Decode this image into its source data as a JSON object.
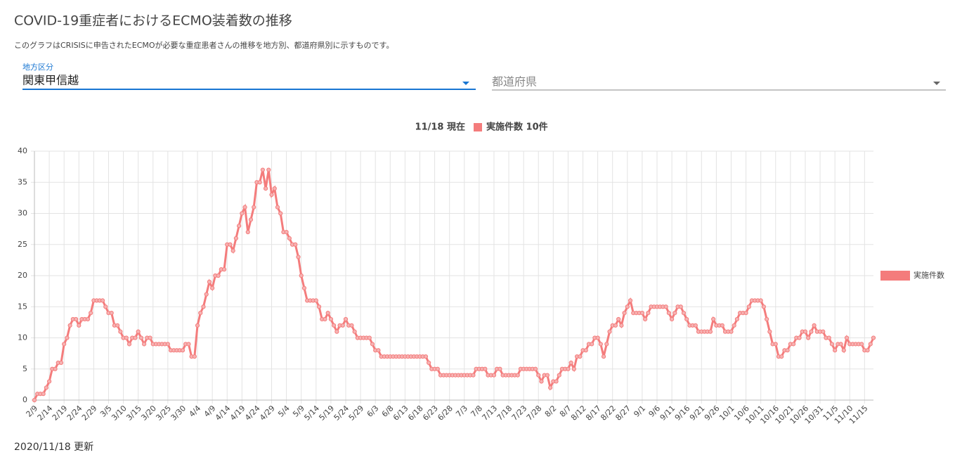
{
  "header": {
    "title": "COVID-19重症者におけるECMO装着数の推移",
    "subtitle": "このグラフはCRISISに申告されたECMOが必要な重症患者さんの推移を地方別、都道府県別に示すものです。"
  },
  "filters": {
    "region_label": "地方区分",
    "region_value": "関東甲信越",
    "prefecture_placeholder": "都道府県"
  },
  "footer": {
    "updated": "2020/11/18 更新"
  },
  "chart_data": {
    "type": "line",
    "title": "11/18 現在",
    "summary": "実施件数 10件",
    "legend": "right",
    "grid": true,
    "ylim": [
      0,
      40
    ],
    "yticks": [
      0,
      5,
      10,
      15,
      20,
      25,
      30,
      35,
      40
    ],
    "categories": [
      "2/9",
      null,
      null,
      null,
      null,
      "2/14",
      null,
      null,
      null,
      null,
      "2/19",
      null,
      null,
      null,
      null,
      "2/24",
      null,
      null,
      null,
      null,
      "2/29",
      null,
      null,
      null,
      null,
      "3/5",
      null,
      null,
      null,
      null,
      "3/10",
      null,
      null,
      null,
      null,
      "3/15",
      null,
      null,
      null,
      null,
      "3/20",
      null,
      null,
      null,
      null,
      "3/25",
      null,
      null,
      null,
      null,
      "3/30",
      null,
      null,
      null,
      null,
      "4/4",
      null,
      null,
      null,
      null,
      "4/9",
      null,
      null,
      null,
      null,
      "4/14",
      null,
      null,
      null,
      null,
      "4/19",
      null,
      null,
      null,
      null,
      "4/24",
      null,
      null,
      null,
      null,
      "4/29",
      null,
      null,
      null,
      null,
      "5/4",
      null,
      null,
      null,
      null,
      "5/9",
      null,
      null,
      null,
      null,
      "5/14",
      null,
      null,
      null,
      null,
      "5/19",
      null,
      null,
      null,
      null,
      "5/24",
      null,
      null,
      null,
      null,
      "5/29",
      null,
      null,
      null,
      null,
      "6/3",
      null,
      null,
      null,
      null,
      "6/8",
      null,
      null,
      null,
      null,
      "6/13",
      null,
      null,
      null,
      null,
      "6/18",
      null,
      null,
      null,
      null,
      "6/23",
      null,
      null,
      null,
      null,
      "6/28",
      null,
      null,
      null,
      null,
      "7/3",
      null,
      null,
      null,
      null,
      "7/8",
      null,
      null,
      null,
      null,
      "7/13",
      null,
      null,
      null,
      null,
      "7/18",
      null,
      null,
      null,
      null,
      "7/23",
      null,
      null,
      null,
      null,
      "7/28",
      null,
      null,
      null,
      null,
      "8/2",
      null,
      null,
      null,
      null,
      "8/7",
      null,
      null,
      null,
      null,
      "8/12",
      null,
      null,
      null,
      null,
      "8/17",
      null,
      null,
      null,
      null,
      "8/22",
      null,
      null,
      null,
      null,
      "8/27",
      null,
      null,
      null,
      null,
      "9/1",
      null,
      null,
      null,
      null,
      "9/6",
      null,
      null,
      null,
      null,
      "9/11",
      null,
      null,
      null,
      null,
      "9/16",
      null,
      null,
      null,
      null,
      "9/21",
      null,
      null,
      null,
      null,
      "9/26",
      null,
      null,
      null,
      null,
      "10/1",
      null,
      null,
      null,
      null,
      "10/6",
      null,
      null,
      null,
      null,
      "10/11",
      null,
      null,
      null,
      null,
      "10/16",
      null,
      null,
      null,
      null,
      "10/21",
      null,
      null,
      null,
      null,
      "10/26",
      null,
      null,
      null,
      null,
      "10/31",
      null,
      null,
      null,
      null,
      "11/5",
      null,
      null,
      null,
      null,
      "11/10",
      null,
      null,
      null,
      null,
      "11/15",
      null,
      null,
      null
    ],
    "series": [
      {
        "name": "実施件数",
        "color": "#f47c7c",
        "values": [
          0,
          1,
          1,
          1,
          2,
          3,
          5,
          5,
          6,
          6,
          9,
          10,
          12,
          13,
          13,
          12,
          13,
          13,
          13,
          14,
          16,
          16,
          16,
          16,
          15,
          14,
          14,
          12,
          12,
          11,
          10,
          10,
          9,
          10,
          10,
          11,
          10,
          9,
          10,
          10,
          9,
          9,
          9,
          9,
          9,
          9,
          8,
          8,
          8,
          8,
          8,
          9,
          9,
          7,
          7,
          12,
          14,
          15,
          17,
          19,
          18,
          20,
          20,
          21,
          21,
          25,
          25,
          24,
          26,
          28,
          30,
          31,
          27,
          29,
          31,
          35,
          35,
          37,
          34,
          37,
          33,
          34,
          31,
          30,
          27,
          27,
          26,
          25,
          25,
          23,
          20,
          18,
          16,
          16,
          16,
          16,
          15,
          13,
          13,
          14,
          13,
          12,
          11,
          12,
          12,
          13,
          12,
          12,
          11,
          10,
          10,
          10,
          10,
          10,
          9,
          8,
          8,
          7,
          7,
          7,
          7,
          7,
          7,
          7,
          7,
          7,
          7,
          7,
          7,
          7,
          7,
          7,
          7,
          6,
          5,
          5,
          5,
          4,
          4,
          4,
          4,
          4,
          4,
          4,
          4,
          4,
          4,
          4,
          4,
          5,
          5,
          5,
          5,
          4,
          4,
          4,
          5,
          5,
          4,
          4,
          4,
          4,
          4,
          4,
          5,
          5,
          5,
          5,
          5,
          5,
          4,
          3,
          4,
          4,
          2,
          3,
          3,
          4,
          5,
          5,
          5,
          6,
          5,
          7,
          7,
          8,
          8,
          9,
          9,
          10,
          10,
          9,
          7,
          9,
          11,
          12,
          12,
          13,
          12,
          14,
          15,
          16,
          14,
          14,
          14,
          14,
          13,
          14,
          15,
          15,
          15,
          15,
          15,
          15,
          14,
          13,
          14,
          15,
          15,
          14,
          13,
          12,
          12,
          12,
          11,
          11,
          11,
          11,
          11,
          13,
          12,
          12,
          12,
          11,
          11,
          11,
          12,
          13,
          14,
          14,
          14,
          15,
          16,
          16,
          16,
          16,
          15,
          13,
          11,
          9,
          9,
          7,
          7,
          8,
          8,
          9,
          9,
          10,
          10,
          11,
          11,
          10,
          11,
          12,
          11,
          11,
          11,
          10,
          10,
          9,
          8,
          9,
          9,
          8,
          10,
          9,
          9,
          9,
          9,
          9,
          8,
          8,
          9,
          10
        ]
      }
    ]
  }
}
